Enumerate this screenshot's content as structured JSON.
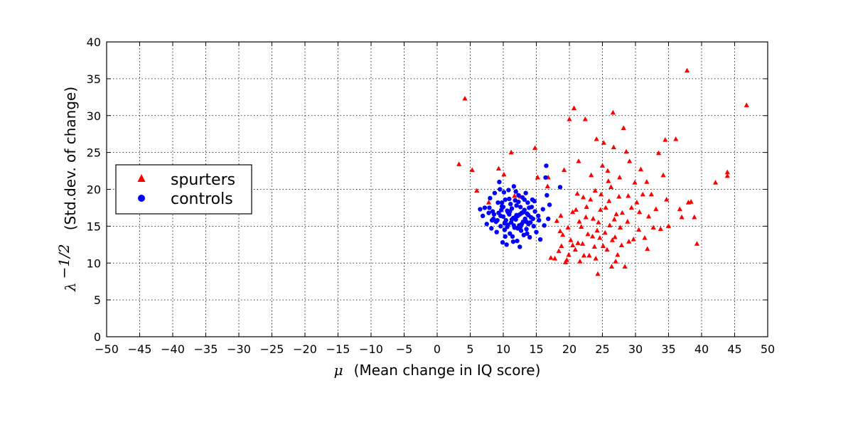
{
  "chart_data": {
    "type": "scatter",
    "title": "",
    "xlabel": {
      "symbol": "μ",
      "text": "(Mean change in IQ score)"
    },
    "ylabel": {
      "symbol": "λ",
      "superscript": "−1/2",
      "text": "(Std.dev. of change)"
    },
    "xlim": [
      -50,
      50
    ],
    "ylim": [
      0,
      40
    ],
    "xticks": [
      "−50",
      "−45",
      "−40",
      "−35",
      "−30",
      "−25",
      "−20",
      "−15",
      "−10",
      "−5",
      "0",
      "5",
      "10",
      "15",
      "20",
      "25",
      "30",
      "35",
      "40",
      "45",
      "50"
    ],
    "yticks": [
      "0",
      "5",
      "10",
      "15",
      "20",
      "25",
      "30",
      "35",
      "40"
    ],
    "grid": true,
    "legend_position": "center-left",
    "series": [
      {
        "name": "spurters",
        "marker": "triangle",
        "color": "#ff0000",
        "points": [
          [
            3.3,
            23.4
          ],
          [
            4.2,
            32.3
          ],
          [
            5.3,
            22.6
          ],
          [
            6.0,
            19.8
          ],
          [
            7.8,
            18.2
          ],
          [
            9.3,
            22.8
          ],
          [
            10.1,
            22.0
          ],
          [
            11.2,
            25.0
          ],
          [
            11.7,
            19.1
          ],
          [
            12.6,
            19.0
          ],
          [
            14.8,
            25.6
          ],
          [
            15.2,
            21.6
          ],
          [
            16.7,
            20.4
          ],
          [
            16.8,
            21.6
          ],
          [
            17.2,
            10.7
          ],
          [
            17.8,
            10.6
          ],
          [
            18.1,
            15.7
          ],
          [
            18.4,
            11.6
          ],
          [
            18.6,
            14.3
          ],
          [
            18.8,
            12.3
          ],
          [
            19.2,
            22.6
          ],
          [
            19.4,
            10.1
          ],
          [
            19.6,
            10.4
          ],
          [
            19.8,
            14.8
          ],
          [
            20.0,
            29.5
          ],
          [
            20.2,
            13.1
          ],
          [
            20.5,
            12.4
          ],
          [
            20.7,
            31.0
          ],
          [
            20.9,
            11.8
          ],
          [
            21.0,
            17.2
          ],
          [
            21.2,
            19.4
          ],
          [
            21.4,
            23.8
          ],
          [
            21.6,
            10.2
          ],
          [
            21.8,
            14.9
          ],
          [
            22.0,
            12.6
          ],
          [
            22.2,
            11.0
          ],
          [
            22.4,
            29.5
          ],
          [
            22.6,
            17.6
          ],
          [
            22.8,
            13.9
          ],
          [
            23.0,
            11.0
          ],
          [
            23.2,
            18.6
          ],
          [
            23.3,
            21.9
          ],
          [
            23.6,
            16.0
          ],
          [
            23.8,
            12.2
          ],
          [
            24.0,
            10.6
          ],
          [
            24.1,
            26.8
          ],
          [
            24.3,
            8.5
          ],
          [
            24.4,
            15.5
          ],
          [
            24.6,
            13.4
          ],
          [
            24.8,
            19.3
          ],
          [
            25.0,
            23.2
          ],
          [
            25.2,
            26.3
          ],
          [
            25.4,
            14.1
          ],
          [
            25.5,
            17.5
          ],
          [
            25.7,
            11.8
          ],
          [
            25.9,
            21.1
          ],
          [
            26.1,
            15.1
          ],
          [
            26.3,
            20.3
          ],
          [
            26.4,
            9.5
          ],
          [
            26.6,
            30.4
          ],
          [
            26.7,
            25.7
          ],
          [
            26.9,
            13.5
          ],
          [
            27.1,
            16.6
          ],
          [
            27.3,
            11.1
          ],
          [
            27.5,
            19.0
          ],
          [
            27.7,
            14.8
          ],
          [
            27.9,
            12.4
          ],
          [
            28.2,
            28.3
          ],
          [
            28.4,
            9.5
          ],
          [
            28.6,
            25.1
          ],
          [
            28.8,
            15.6
          ],
          [
            29.1,
            23.8
          ],
          [
            29.4,
            17.5
          ],
          [
            29.7,
            13.2
          ],
          [
            29.9,
            20.9
          ],
          [
            30.2,
            18.2
          ],
          [
            30.5,
            14.5
          ],
          [
            30.8,
            22.7
          ],
          [
            31.1,
            19.3
          ],
          [
            31.4,
            13.4
          ],
          [
            31.7,
            21.0
          ],
          [
            32.0,
            16.3
          ],
          [
            32.4,
            19.3
          ],
          [
            32.7,
            14.8
          ],
          [
            33.1,
            17.3
          ],
          [
            33.5,
            24.9
          ],
          [
            33.8,
            14.6
          ],
          [
            34.2,
            21.9
          ],
          [
            34.5,
            26.7
          ],
          [
            34.7,
            18.6
          ],
          [
            35.0,
            15.0
          ],
          [
            36.1,
            26.8
          ],
          [
            36.7,
            17.3
          ],
          [
            37.0,
            16.2
          ],
          [
            37.8,
            36.1
          ],
          [
            38.0,
            18.2
          ],
          [
            38.4,
            18.3
          ],
          [
            38.9,
            16.2
          ],
          [
            39.3,
            12.6
          ],
          [
            42.1,
            20.9
          ],
          [
            43.9,
            22.3
          ],
          [
            43.9,
            21.8
          ],
          [
            46.8,
            31.4
          ],
          [
            22.5,
            16.2
          ],
          [
            23.5,
            13.6
          ],
          [
            24.7,
            17.2
          ],
          [
            25.1,
            12.3
          ],
          [
            26.0,
            18.4
          ],
          [
            27.0,
            10.2
          ],
          [
            28.0,
            16.8
          ],
          [
            29.0,
            12.9
          ],
          [
            21.5,
            15.6
          ],
          [
            20.5,
            16.9
          ],
          [
            19.0,
            13.8
          ],
          [
            18.7,
            16.4
          ],
          [
            23.9,
            19.8
          ],
          [
            25.8,
            22.5
          ],
          [
            26.8,
            15.9
          ],
          [
            24.2,
            14.4
          ],
          [
            22.1,
            18.9
          ],
          [
            19.9,
            11.1
          ],
          [
            21.3,
            12.7
          ],
          [
            27.6,
            21.6
          ],
          [
            28.9,
            19.1
          ],
          [
            30.6,
            16.9
          ],
          [
            31.8,
            11.9
          ],
          [
            26.5,
            13.1
          ]
        ]
      },
      {
        "name": "controls",
        "marker": "circle",
        "color": "#0000ff",
        "points": [
          [
            6.5,
            17.3
          ],
          [
            6.9,
            16.4
          ],
          [
            7.2,
            17.5
          ],
          [
            7.5,
            15.3
          ],
          [
            7.8,
            16.8
          ],
          [
            8.0,
            18.8
          ],
          [
            8.2,
            14.7
          ],
          [
            8.4,
            17.0
          ],
          [
            8.5,
            16.0
          ],
          [
            8.7,
            19.5
          ],
          [
            8.9,
            15.6
          ],
          [
            9.0,
            14.2
          ],
          [
            9.2,
            18.2
          ],
          [
            9.3,
            16.8
          ],
          [
            9.5,
            20.0
          ],
          [
            9.6,
            15.0
          ],
          [
            9.8,
            17.7
          ],
          [
            9.9,
            12.8
          ],
          [
            10.0,
            16.3
          ],
          [
            10.1,
            19.6
          ],
          [
            10.2,
            14.5
          ],
          [
            10.3,
            18.6
          ],
          [
            10.4,
            15.8
          ],
          [
            10.5,
            12.5
          ],
          [
            10.6,
            17.1
          ],
          [
            10.7,
            15.2
          ],
          [
            10.8,
            19.9
          ],
          [
            10.9,
            16.6
          ],
          [
            11.0,
            14.0
          ],
          [
            11.1,
            18.0
          ],
          [
            11.2,
            15.5
          ],
          [
            11.3,
            17.4
          ],
          [
            11.4,
            13.6
          ],
          [
            11.5,
            16.1
          ],
          [
            11.6,
            20.4
          ],
          [
            11.7,
            14.8
          ],
          [
            11.8,
            18.5
          ],
          [
            11.9,
            15.9
          ],
          [
            12.0,
            17.8
          ],
          [
            12.1,
            13.0
          ],
          [
            12.2,
            16.4
          ],
          [
            12.3,
            19.2
          ],
          [
            12.4,
            15.1
          ],
          [
            12.5,
            12.2
          ],
          [
            12.6,
            17.6
          ],
          [
            12.7,
            14.4
          ],
          [
            12.8,
            16.8
          ],
          [
            12.9,
            18.9
          ],
          [
            13.0,
            15.6
          ],
          [
            13.1,
            13.8
          ],
          [
            13.2,
            17.2
          ],
          [
            13.3,
            16.0
          ],
          [
            13.4,
            19.5
          ],
          [
            13.5,
            14.6
          ],
          [
            13.6,
            16.7
          ],
          [
            13.7,
            18.2
          ],
          [
            13.8,
            15.3
          ],
          [
            13.9,
            17.5
          ],
          [
            14.0,
            13.5
          ],
          [
            14.2,
            16.2
          ],
          [
            14.4,
            18.6
          ],
          [
            14.6,
            15.0
          ],
          [
            14.8,
            17.0
          ],
          [
            15.0,
            14.2
          ],
          [
            15.3,
            16.4
          ],
          [
            15.6,
            13.2
          ],
          [
            16.0,
            17.3
          ],
          [
            16.2,
            15.1
          ],
          [
            16.4,
            21.6
          ],
          [
            16.5,
            23.2
          ],
          [
            16.6,
            19.2
          ],
          [
            16.8,
            16.0
          ],
          [
            17.0,
            17.9
          ],
          [
            18.6,
            20.3
          ],
          [
            9.4,
            21.0
          ],
          [
            10.3,
            13.6
          ],
          [
            11.5,
            12.9
          ],
          [
            12.2,
            14.7
          ],
          [
            13.6,
            14.0
          ],
          [
            14.3,
            17.6
          ],
          [
            8.6,
            16.6
          ],
          [
            9.7,
            17.2
          ],
          [
            10.7,
            16.9
          ],
          [
            11.8,
            16.2
          ],
          [
            12.8,
            15.3
          ],
          [
            13.8,
            16.5
          ],
          [
            9.1,
            15.8
          ],
          [
            10.2,
            15.4
          ],
          [
            11.3,
            15.9
          ],
          [
            12.5,
            16.6
          ],
          [
            13.5,
            15.6
          ],
          [
            14.5,
            16.0
          ],
          [
            10.0,
            17.6
          ],
          [
            11.0,
            17.0
          ],
          [
            12.0,
            16.5
          ],
          [
            13.0,
            16.9
          ],
          [
            11.6,
            15.1
          ],
          [
            12.6,
            14.9
          ],
          [
            10.6,
            14.9
          ],
          [
            9.6,
            16.4
          ],
          [
            8.3,
            15.8
          ],
          [
            14.1,
            15.5
          ],
          [
            15.4,
            15.8
          ],
          [
            7.9,
            17.5
          ],
          [
            11.9,
            19.7
          ],
          [
            12.3,
            18.3
          ],
          [
            13.2,
            18.6
          ],
          [
            10.9,
            18.7
          ],
          [
            9.8,
            18.2
          ],
          [
            14.7,
            18.4
          ]
        ]
      }
    ]
  }
}
